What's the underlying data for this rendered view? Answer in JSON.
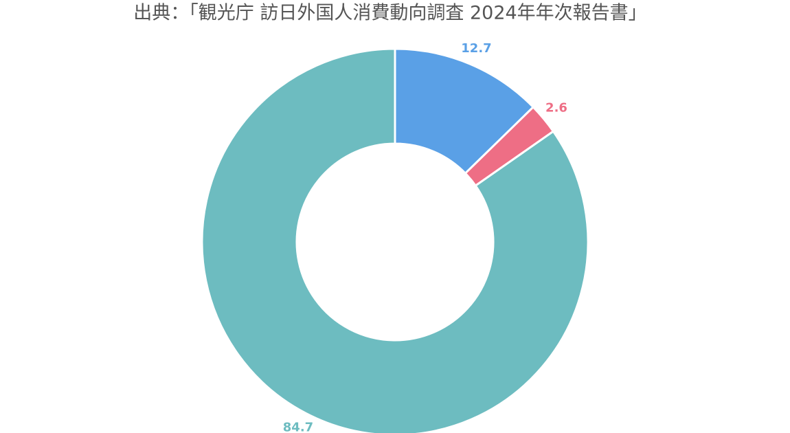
{
  "chart_data": {
    "type": "donut",
    "title": "出典：「観光庁 訪日外国人消費動向調査 2024年年次報告書」",
    "values": [
      12.7,
      2.6,
      84.7
    ],
    "colors": [
      "#5aa0e6",
      "#ee6e85",
      "#6dbcc0"
    ]
  }
}
